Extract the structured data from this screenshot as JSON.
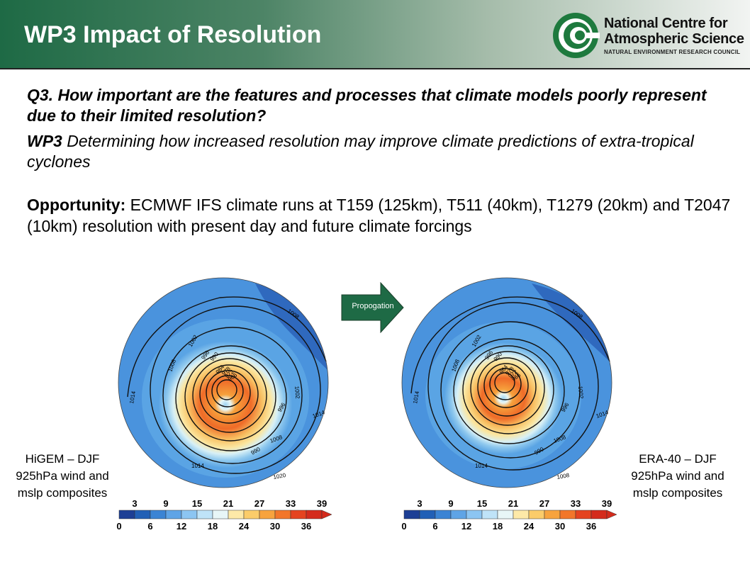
{
  "header": {
    "title": "WP3 Impact of Resolution",
    "logo_line1": "National Centre for",
    "logo_line2": "Atmospheric Science",
    "logo_line3": "NATURAL ENVIRONMENT RESEARCH COUNCIL"
  },
  "body": {
    "q3": "Q3. How important are the features and processes that climate models poorly represent due to their limited resolution?",
    "wp3_label": "WP3",
    "wp3_text": " Determining how increased resolution may improve climate predictions of extra-tropical cyclones",
    "opportunity_label": "Opportunity:",
    "opportunity_text": " ECMWF IFS climate runs at T159 (125km), T511 (40km), T1279 (20km) and T2047 (10km) resolution with present day and future climate forcings"
  },
  "arrow": {
    "label": "Propogation",
    "color": "#1e6a45"
  },
  "maps": [
    {
      "caption": "HiGEM – DJF 925hPa wind and mslp composites",
      "contour_labels": [
        "1014",
        "1008",
        "1002",
        "996",
        "990",
        "984",
        "978",
        "972",
        "966",
        "1008",
        "1002",
        "996",
        "990",
        "1008",
        "1014",
        "1020",
        "1014"
      ]
    },
    {
      "caption": "ERA-40 – DJF 925hPa wind and mslp composites",
      "contour_labels": [
        "1014",
        "1008",
        "1002",
        "996",
        "990",
        "984",
        "978",
        "972",
        "966",
        "1008",
        "1002",
        "996",
        "990",
        "1008",
        "1014",
        "1008",
        "1014"
      ]
    }
  ],
  "colorbar": {
    "top_ticks": [
      "3",
      "9",
      "15",
      "21",
      "27",
      "33",
      "39"
    ],
    "bottom_ticks": [
      "0",
      "6",
      "12",
      "18",
      "24",
      "30",
      "36"
    ],
    "colors": [
      "#1d3f95",
      "#2160b6",
      "#3b84d4",
      "#5fa4e6",
      "#8cc5f2",
      "#bfe3f8",
      "#e8f6f7",
      "#fde9a8",
      "#fbcc6a",
      "#f7a33e",
      "#f2762a",
      "#e5431f",
      "#d42b1c"
    ]
  }
}
